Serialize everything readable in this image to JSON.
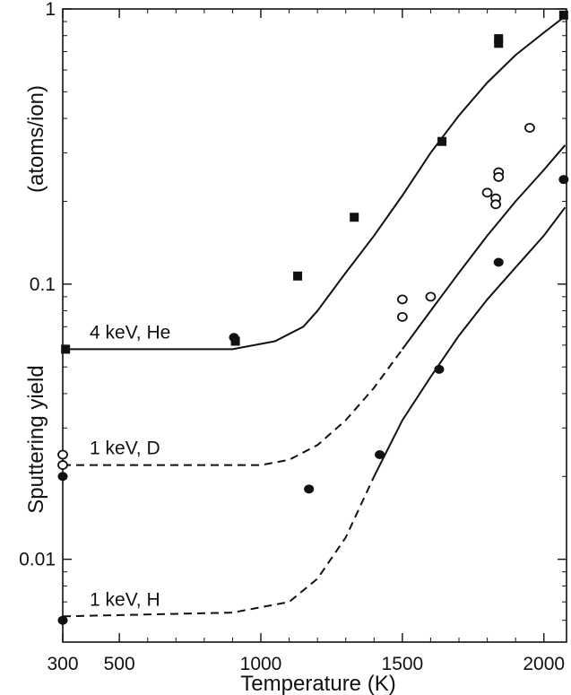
{
  "chart_data": {
    "type": "scatter",
    "title": "",
    "xlabel": "Temperature (K)",
    "ylabel": "Sputtering yield",
    "ylabel_unit": "(atoms/ion)",
    "xlim": [
      300,
      2080
    ],
    "ylim": [
      0.005,
      1
    ],
    "yscale": "log",
    "grid": false,
    "x_ticks": [
      300,
      500,
      1000,
      1500,
      2000
    ],
    "y_ticks": [
      0.01,
      0.1,
      1
    ],
    "y_tick_labels": [
      "0.01",
      "0.1",
      "1"
    ],
    "curves": [
      {
        "name": "4 keV, He",
        "segments": [
          {
            "style": "solid",
            "points": [
              [
                300,
                0.058
              ],
              [
                900,
                0.058
              ],
              [
                1050,
                0.062
              ],
              [
                1150,
                0.07
              ],
              [
                1200,
                0.08
              ],
              [
                1300,
                0.11
              ],
              [
                1400,
                0.15
              ],
              [
                1500,
                0.21
              ],
              [
                1600,
                0.3
              ],
              [
                1700,
                0.41
              ],
              [
                1800,
                0.54
              ],
              [
                1900,
                0.68
              ],
              [
                2000,
                0.82
              ],
              [
                2075,
                0.94
              ]
            ]
          }
        ]
      },
      {
        "name": "1 keV, D",
        "segments": [
          {
            "style": "dashed",
            "points": [
              [
                300,
                0.022
              ],
              [
                1000,
                0.022
              ],
              [
                1100,
                0.023
              ],
              [
                1200,
                0.026
              ],
              [
                1300,
                0.032
              ],
              [
                1400,
                0.042
              ],
              [
                1500,
                0.058
              ]
            ]
          },
          {
            "style": "solid",
            "points": [
              [
                1500,
                0.058
              ],
              [
                1600,
                0.08
              ],
              [
                1700,
                0.11
              ],
              [
                1800,
                0.15
              ],
              [
                1900,
                0.2
              ],
              [
                2000,
                0.26
              ],
              [
                2075,
                0.32
              ]
            ]
          }
        ]
      },
      {
        "name": "1 keV, H",
        "segments": [
          {
            "style": "dashed",
            "points": [
              [
                300,
                0.0062
              ],
              [
                900,
                0.0064
              ],
              [
                1100,
                0.007
              ],
              [
                1200,
                0.0085
              ],
              [
                1300,
                0.012
              ],
              [
                1400,
                0.02
              ]
            ]
          },
          {
            "style": "solid",
            "points": [
              [
                1400,
                0.02
              ],
              [
                1500,
                0.032
              ],
              [
                1600,
                0.046
              ],
              [
                1700,
                0.065
              ],
              [
                1800,
                0.088
              ],
              [
                1900,
                0.115
              ],
              [
                2000,
                0.15
              ],
              [
                2075,
                0.19
              ]
            ]
          }
        ]
      }
    ],
    "series": [
      {
        "name": "He data",
        "marker": "filled-square",
        "points": [
          [
            310,
            0.058
          ],
          [
            910,
            0.062
          ],
          [
            1130,
            0.107
          ],
          [
            1330,
            0.175
          ],
          [
            1640,
            0.33
          ],
          [
            1840,
            0.75
          ],
          [
            1840,
            0.78
          ],
          [
            2070,
            0.95
          ]
        ]
      },
      {
        "name": "D data",
        "marker": "open-circle",
        "points": [
          [
            300,
            0.024
          ],
          [
            300,
            0.022
          ],
          [
            1500,
            0.088
          ],
          [
            1500,
            0.076
          ],
          [
            1600,
            0.09
          ],
          [
            1800,
            0.215
          ],
          [
            1830,
            0.205
          ],
          [
            1830,
            0.195
          ],
          [
            1840,
            0.255
          ],
          [
            1840,
            0.245
          ],
          [
            1950,
            0.37
          ]
        ]
      },
      {
        "name": "H data",
        "marker": "filled-circle",
        "points": [
          [
            300,
            0.02
          ],
          [
            300,
            0.006
          ],
          [
            905,
            0.064
          ],
          [
            1170,
            0.018
          ],
          [
            1420,
            0.024
          ],
          [
            1630,
            0.049
          ],
          [
            1840,
            0.12
          ],
          [
            2070,
            0.24
          ]
        ]
      }
    ]
  }
}
